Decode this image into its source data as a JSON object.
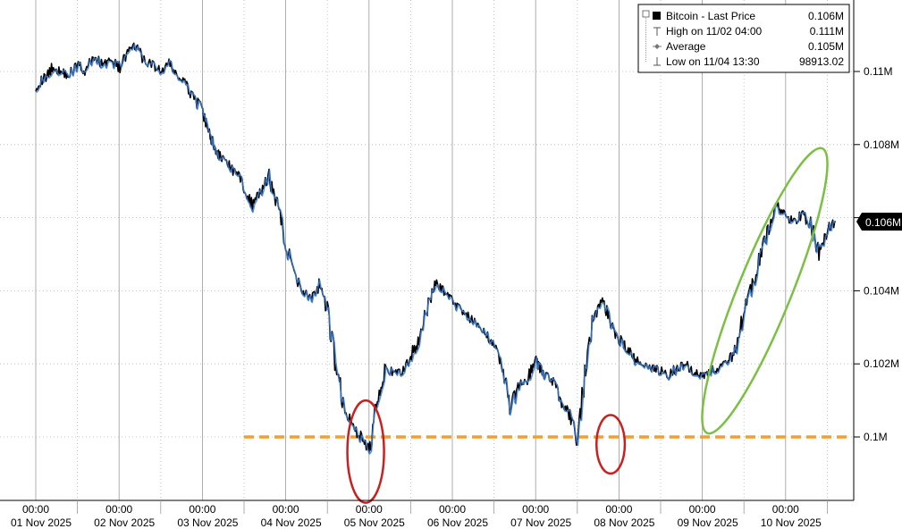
{
  "chart_data": {
    "type": "line",
    "title": "",
    "xlabel": "",
    "ylabel": "",
    "x_range": [
      "2025-11-01 00:00",
      "2025-11-11 00:00"
    ],
    "ylim": [
      98000,
      112000
    ],
    "y_ticks": [
      {
        "value": 100000,
        "label": "0.1M"
      },
      {
        "value": 102000,
        "label": "0.102M"
      },
      {
        "value": 104000,
        "label": "0.104M"
      },
      {
        "value": 106000,
        "label": "0.106M"
      },
      {
        "value": 108000,
        "label": "0.108M"
      },
      {
        "value": 110000,
        "label": "0.11M"
      }
    ],
    "x_ticks": [
      {
        "time": "00:00",
        "date": "01 Nov 2025",
        "pos": 0
      },
      {
        "time": "00:00",
        "date": "02 Nov 2025",
        "pos": 1
      },
      {
        "time": "00:00",
        "date": "03 Nov 2025",
        "pos": 2
      },
      {
        "time": "00:00",
        "date": "04 Nov 2025",
        "pos": 3
      },
      {
        "time": "00:00",
        "date": "05 Nov 2025",
        "pos": 4
      },
      {
        "time": "00:00",
        "date": "06 Nov 2025",
        "pos": 5
      },
      {
        "time": "00:00",
        "date": "07 Nov 2025",
        "pos": 6
      },
      {
        "time": "00:00",
        "date": "08 Nov 2025",
        "pos": 7
      },
      {
        "time": "00:00",
        "date": "09 Nov 2025",
        "pos": 8
      },
      {
        "time": "00:00",
        "date": "10 Nov 2025",
        "pos": 9
      }
    ],
    "series": [
      {
        "name": "Bitcoin - Last Price",
        "color": "#000000",
        "highlight_color": "#3a7fd5",
        "x_days": [
          0.0,
          0.1,
          0.2,
          0.3,
          0.4,
          0.5,
          0.6,
          0.7,
          0.8,
          0.9,
          1.0,
          1.1,
          1.2,
          1.3,
          1.4,
          1.5,
          1.6,
          1.7,
          1.8,
          1.9,
          2.0,
          2.05,
          2.1,
          2.15,
          2.2,
          2.3,
          2.4,
          2.5,
          2.6,
          2.7,
          2.8,
          2.9,
          3.0,
          3.1,
          3.2,
          3.3,
          3.4,
          3.5,
          3.6,
          3.7,
          3.8,
          3.9,
          4.0,
          4.1,
          4.2,
          4.3,
          4.4,
          4.5,
          4.6,
          4.7,
          4.8,
          4.9,
          5.0,
          5.1,
          5.2,
          5.3,
          5.4,
          5.5,
          5.6,
          5.7,
          5.8,
          5.9,
          6.0,
          6.05,
          6.1,
          6.2,
          6.3,
          6.4,
          6.5,
          6.6,
          6.7,
          6.8,
          6.9,
          7.0,
          7.1,
          7.2,
          7.3,
          7.4,
          7.5,
          7.6,
          7.7,
          7.8,
          7.9,
          8.0,
          8.1,
          8.2,
          8.3,
          8.4,
          8.5,
          8.6,
          8.7,
          8.8,
          8.9,
          9.0,
          9.1,
          9.2,
          9.3,
          9.4,
          9.5,
          9.6
        ],
        "values": [
          109600,
          109800,
          110100,
          110000,
          109900,
          110200,
          110000,
          110400,
          110200,
          110300,
          110100,
          110500,
          110700,
          110300,
          110200,
          110000,
          110200,
          109900,
          109600,
          109300,
          108900,
          108500,
          108200,
          107900,
          107700,
          107500,
          107200,
          106900,
          106300,
          106700,
          107100,
          106400,
          105200,
          104600,
          104000,
          103800,
          104100,
          103400,
          102000,
          100800,
          100300,
          100000,
          99600,
          101100,
          101900,
          101700,
          101800,
          102200,
          102700,
          103500,
          104200,
          104000,
          103700,
          103500,
          103300,
          103000,
          102800,
          102600,
          101900,
          100800,
          101400,
          101600,
          102100,
          101900,
          101700,
          101600,
          101000,
          100600,
          99900,
          101800,
          103300,
          103800,
          103100,
          102700,
          102400,
          102100,
          102000,
          101900,
          101800,
          101700,
          101900,
          102000,
          101800,
          101700,
          101800,
          101900,
          102000,
          102400,
          103400,
          104100,
          105000,
          105700,
          106300,
          106000,
          105900,
          106100,
          105800,
          105000,
          105700,
          105900
        ]
      },
      {
        "name": "High on 11/02 04:00",
        "value_label": "0.111M",
        "value": 111000
      },
      {
        "name": "Average",
        "value_label": "0.105M",
        "value": 105000
      },
      {
        "name": "Low on 11/04 13:30",
        "value_label": "98913.02",
        "value": 98913.02
      }
    ],
    "last_price_label": "0.106M",
    "last_price": 106000,
    "legend": {
      "placement": "top-right",
      "entries": [
        {
          "label": "Bitcoin - Last Price",
          "value": "0.106M"
        },
        {
          "label": "High on 11/02 04:00",
          "value": "0.111M"
        },
        {
          "label": "Average",
          "value": "0.105M"
        },
        {
          "label": "Low on 11/04 13:30",
          "value": "98913.02"
        }
      ]
    },
    "annotations": [
      {
        "kind": "horizontal-dashed-line",
        "value": 100000,
        "color": "#f0a030",
        "from_day": 2.5,
        "to_day": 10.7
      },
      {
        "kind": "ellipse",
        "color": "#cc1f1f",
        "center_day": 3.96,
        "center_value": 99600,
        "rx_days": 0.22,
        "ry_value": 1400
      },
      {
        "kind": "ellipse",
        "color": "#cc1f1f",
        "center_day": 6.9,
        "center_value": 99800,
        "rx_days": 0.17,
        "ry_value": 800
      },
      {
        "kind": "ellipse-rotated",
        "color": "#7bc043",
        "center_day": 8.75,
        "center_value": 104000,
        "rx_days": 0.32,
        "ry_value": 4200,
        "rotation_deg": 22
      }
    ],
    "grid": true
  }
}
